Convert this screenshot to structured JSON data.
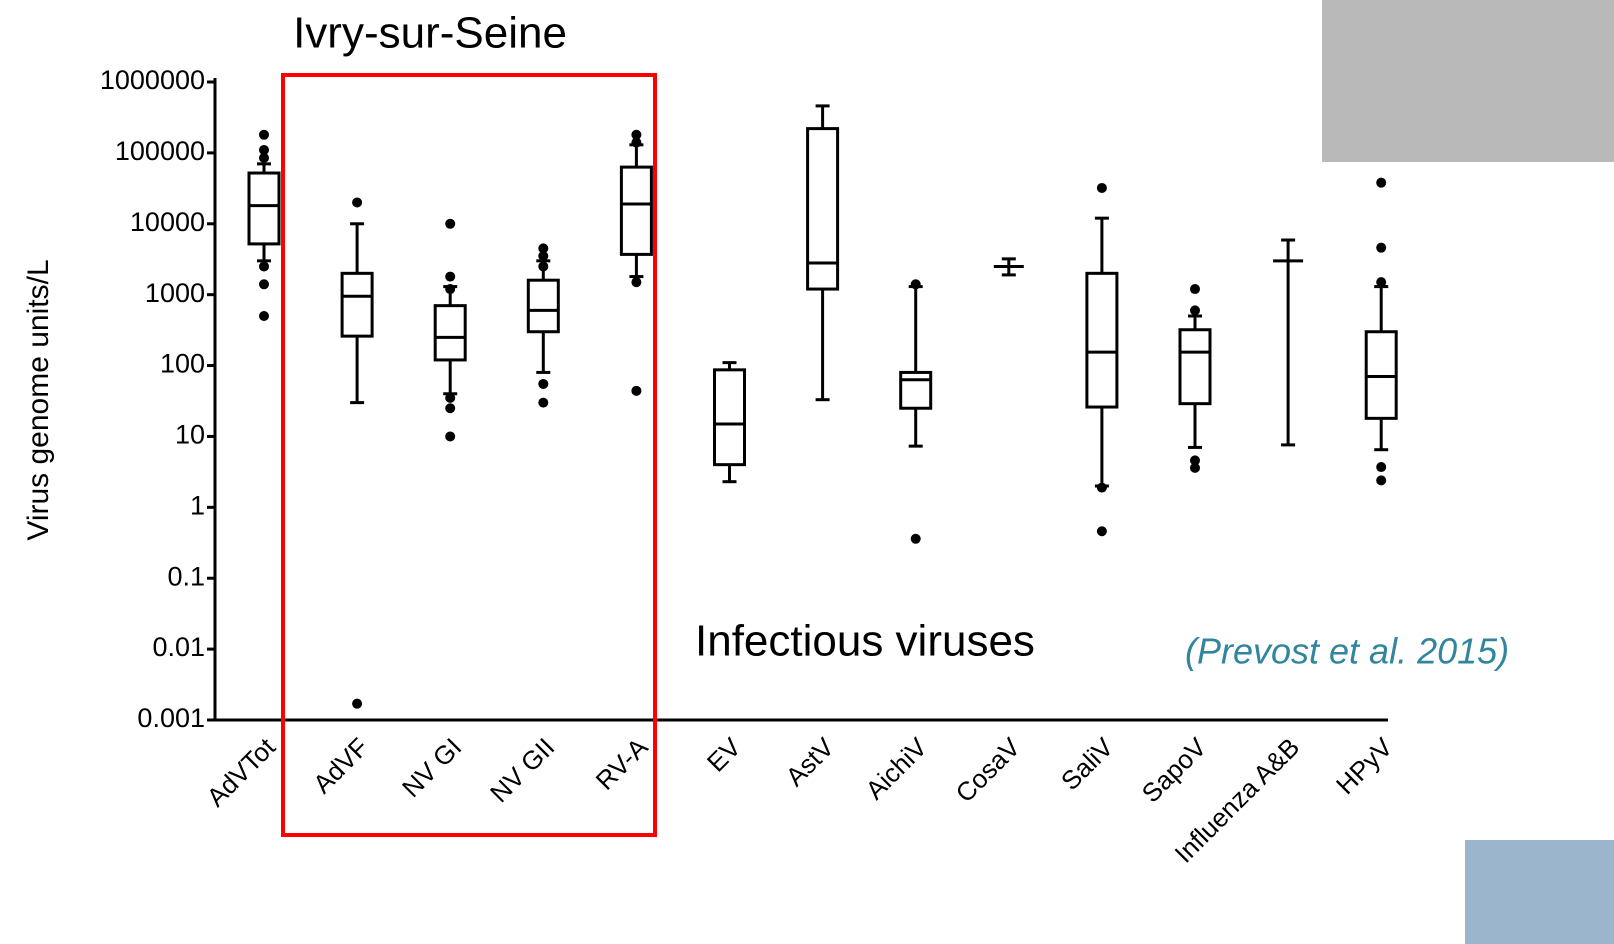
{
  "chart_data": {
    "type": "box",
    "title": "Ivry-sur-Seine",
    "y_label": "Virus genome units/L",
    "annotation": "Infectious viruses",
    "citation": "(Prevost et al. 2015)",
    "log_scale": true,
    "color": "#000000",
    "highlight_color": "#ff0000",
    "ylim": [
      0.001,
      1000000
    ],
    "yticks": [
      1000000,
      100000,
      10000,
      1000,
      100,
      10,
      1,
      0.1,
      0.01,
      0.001
    ],
    "categories": [
      "AdVTot",
      "AdVF",
      "NV GI",
      "NV GII",
      "RV-A",
      "EV",
      "AstV",
      "AichiV",
      "CosaV",
      "SaliV",
      "SapoV",
      "Influenza A&B",
      "HPyV"
    ],
    "stats": [
      {
        "whisker_low": 3000,
        "q1": 5200,
        "median": 18000,
        "q3": 52000,
        "whisker_high": 70000,
        "outliers": [
          180000,
          110000,
          85000,
          2500,
          1400,
          500
        ]
      },
      {
        "whisker_low": 30,
        "q1": 260,
        "median": 950,
        "q3": 2000,
        "whisker_high": 10000,
        "outliers": [
          20000,
          0.0017
        ]
      },
      {
        "whisker_low": 40,
        "q1": 120,
        "median": 250,
        "q3": 700,
        "whisker_high": 1300,
        "outliers": [
          10000,
          1800,
          1200,
          35,
          25,
          10
        ]
      },
      {
        "whisker_low": 80,
        "q1": 300,
        "median": 600,
        "q3": 1600,
        "whisker_high": 3000,
        "outliers": [
          4500,
          3500,
          2500,
          55,
          30
        ]
      },
      {
        "whisker_low": 1800,
        "q1": 3700,
        "median": 19000,
        "q3": 63000,
        "whisker_high": 130000,
        "outliers": [
          180000,
          140000,
          1500,
          44
        ]
      },
      {
        "whisker_low": 2.3,
        "q1": 4,
        "median": 15,
        "q3": 87,
        "whisker_high": 110,
        "outliers": []
      },
      {
        "whisker_low": 33,
        "q1": 1200,
        "median": 2800,
        "q3": 220000,
        "whisker_high": 460000,
        "outliers": []
      },
      {
        "whisker_low": 7.3,
        "q1": 25,
        "median": 63,
        "q3": 80,
        "whisker_high": 1300,
        "outliers": [
          1400,
          0.36
        ]
      },
      {
        "whisker_low": 1900,
        "q1": 2500,
        "median": 2500,
        "q3": 2500,
        "whisker_high": 3200,
        "outliers": []
      },
      {
        "whisker_low": 2,
        "q1": 26,
        "median": 155,
        "q3": 2000,
        "whisker_high": 12000,
        "outliers": [
          32000,
          1.9,
          0.46
        ]
      },
      {
        "whisker_low": 7,
        "q1": 29,
        "median": 155,
        "q3": 320,
        "whisker_high": 500,
        "outliers": [
          1200,
          600,
          4.6,
          3.6
        ]
      },
      {
        "whisker_low": 7.6,
        "q1": 3000,
        "median": 3000,
        "q3": 3000,
        "whisker_high": 5900,
        "outliers": []
      },
      {
        "whisker_low": 6.5,
        "q1": 18,
        "median": 70,
        "q3": 300,
        "whisker_high": 1300,
        "outliers": [
          38000,
          4600,
          1500,
          3.7,
          2.4
        ]
      }
    ]
  }
}
